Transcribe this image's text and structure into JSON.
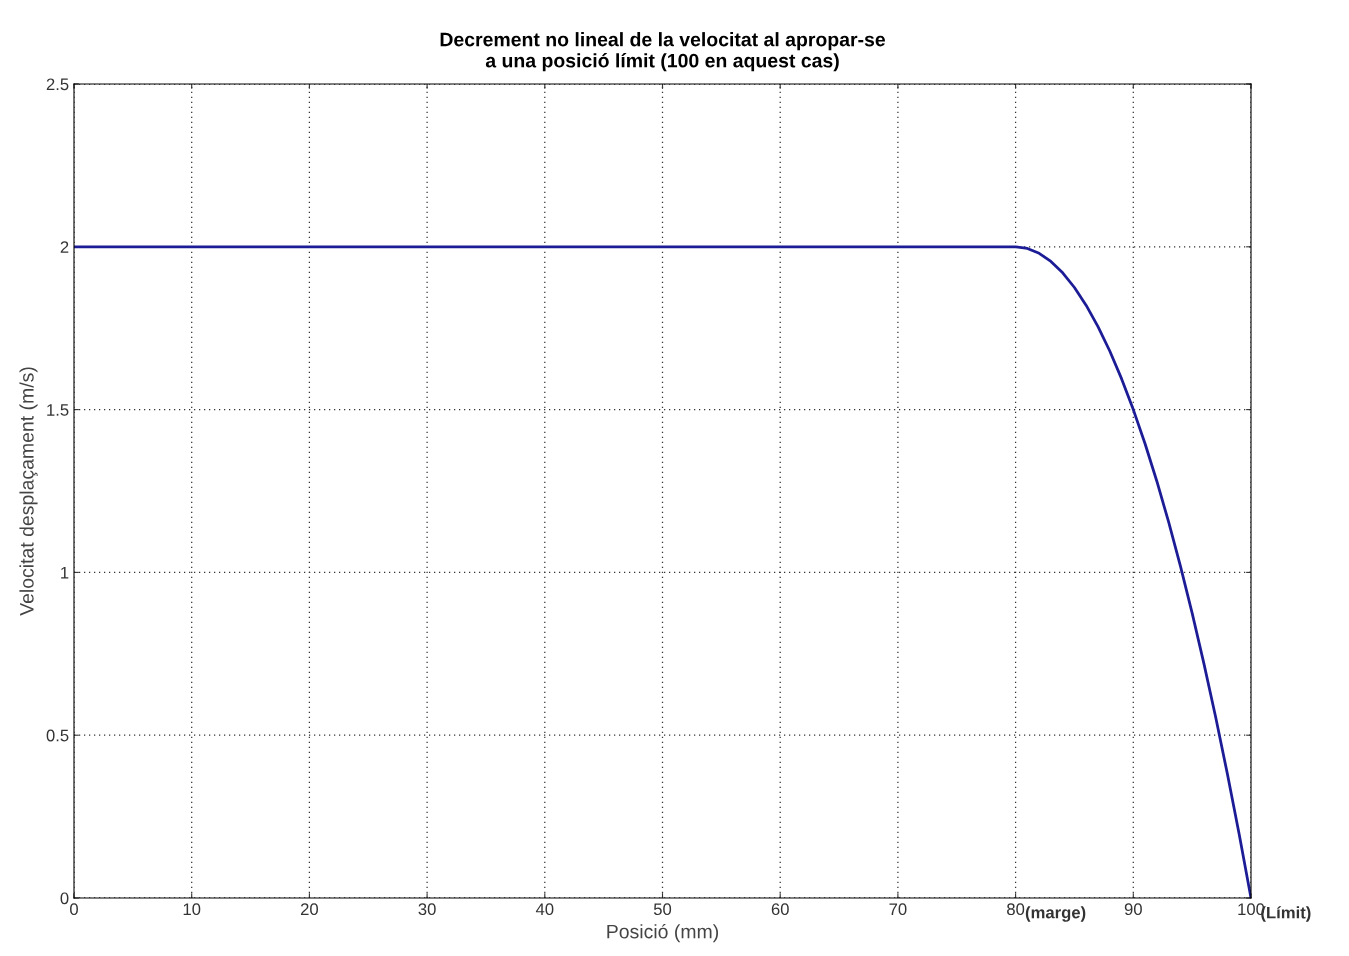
{
  "chart_data": {
    "type": "line",
    "title": "Decrement no lineal de la velocitat al apropar-se\na una posició límit (100 en aquest cas)",
    "xlabel": "Posició (mm)",
    "ylabel": "Velocitat desplaçament (m/s)",
    "series": [
      {
        "color": "#1c1c96",
        "x": [
          0,
          80,
          81,
          82,
          83,
          84,
          85,
          86,
          87,
          88,
          89,
          90,
          91,
          92,
          93,
          94,
          95,
          96,
          97,
          98,
          99,
          100
        ],
        "values": [
          2,
          2,
          1.995,
          1.98,
          1.955,
          1.92,
          1.875,
          1.82,
          1.755,
          1.68,
          1.595,
          1.5,
          1.395,
          1.28,
          1.155,
          1.02,
          0.875,
          0.72,
          0.555,
          0.38,
          0.195,
          0
        ]
      }
    ],
    "xlim": [
      0,
      100
    ],
    "ylim": [
      0,
      2.5
    ],
    "xticks": [
      0,
      10,
      20,
      30,
      40,
      50,
      60,
      70,
      80,
      90,
      100
    ],
    "yticks": [
      0,
      0.5,
      1,
      1.5,
      2,
      2.5
    ],
    "annotations": [
      "(marge)",
      "(Límit)"
    ],
    "grid": true,
    "line_style": "solid",
    "marker": "none"
  }
}
